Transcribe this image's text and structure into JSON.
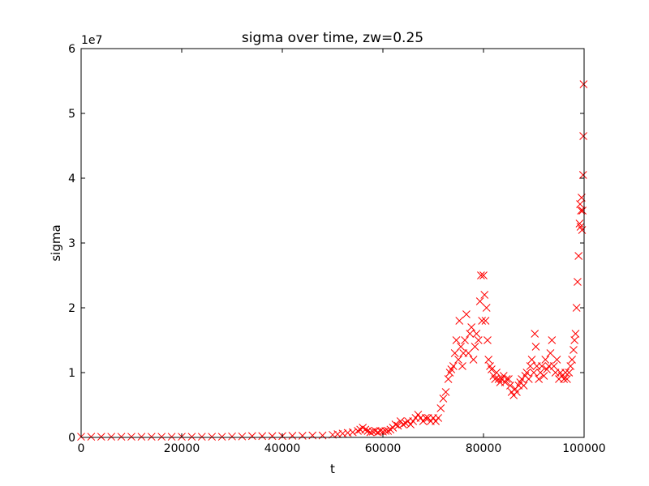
{
  "chart_data": {
    "type": "scatter",
    "title": "sigma over time, zw=0.25",
    "xlabel": "t",
    "ylabel": "sigma",
    "y_multiplier_label": "1e7",
    "xlim": [
      0,
      100000
    ],
    "ylim": [
      0,
      6
    ],
    "y_unit_scale": 10000000,
    "xticks": [
      0,
      20000,
      40000,
      60000,
      80000,
      100000
    ],
    "xtick_labels": [
      "0",
      "20000",
      "40000",
      "60000",
      "80000",
      "100000"
    ],
    "yticks": [
      0,
      1,
      2,
      3,
      4,
      5,
      6
    ],
    "ytick_labels": [
      "0",
      "1",
      "2",
      "3",
      "4",
      "5",
      "6"
    ],
    "grid": false,
    "marker": "x",
    "color": "#ff0000",
    "points": [
      [
        0,
        0.01
      ],
      [
        2000,
        0.01
      ],
      [
        4000,
        0.01
      ],
      [
        6000,
        0.01
      ],
      [
        8000,
        0.01
      ],
      [
        10000,
        0.01
      ],
      [
        12000,
        0.01
      ],
      [
        14000,
        0.01
      ],
      [
        16000,
        0.01
      ],
      [
        18000,
        0.01
      ],
      [
        20000,
        0.01
      ],
      [
        22000,
        0.01
      ],
      [
        24000,
        0.01
      ],
      [
        26000,
        0.01
      ],
      [
        28000,
        0.01
      ],
      [
        30000,
        0.015
      ],
      [
        32000,
        0.015
      ],
      [
        34000,
        0.02
      ],
      [
        36000,
        0.02
      ],
      [
        38000,
        0.02
      ],
      [
        40000,
        0.02
      ],
      [
        42000,
        0.025
      ],
      [
        44000,
        0.025
      ],
      [
        46000,
        0.03
      ],
      [
        48000,
        0.03
      ],
      [
        50000,
        0.04
      ],
      [
        51000,
        0.05
      ],
      [
        52000,
        0.06
      ],
      [
        53000,
        0.07
      ],
      [
        54000,
        0.08
      ],
      [
        55000,
        0.1
      ],
      [
        55500,
        0.12
      ],
      [
        56000,
        0.15
      ],
      [
        56500,
        0.12
      ],
      [
        57000,
        0.1
      ],
      [
        57500,
        0.08
      ],
      [
        58000,
        0.09
      ],
      [
        58500,
        0.1
      ],
      [
        59000,
        0.08
      ],
      [
        59500,
        0.1
      ],
      [
        60000,
        0.09
      ],
      [
        60500,
        0.1
      ],
      [
        61000,
        0.1
      ],
      [
        61500,
        0.12
      ],
      [
        62000,
        0.15
      ],
      [
        62500,
        0.2
      ],
      [
        63000,
        0.18
      ],
      [
        63500,
        0.25
      ],
      [
        64000,
        0.2
      ],
      [
        64500,
        0.22
      ],
      [
        65000,
        0.25
      ],
      [
        65500,
        0.2
      ],
      [
        66000,
        0.25
      ],
      [
        66500,
        0.3
      ],
      [
        67000,
        0.35
      ],
      [
        67500,
        0.3
      ],
      [
        68000,
        0.25
      ],
      [
        68500,
        0.3
      ],
      [
        69000,
        0.3
      ],
      [
        69500,
        0.25
      ],
      [
        70000,
        0.3
      ],
      [
        70500,
        0.25
      ],
      [
        71000,
        0.3
      ],
      [
        71500,
        0.45
      ],
      [
        72000,
        0.6
      ],
      [
        72500,
        0.7
      ],
      [
        73000,
        0.9
      ],
      [
        73300,
        1.0
      ],
      [
        73600,
        1.05
      ],
      [
        74000,
        1.1
      ],
      [
        74300,
        1.3
      ],
      [
        74600,
        1.5
      ],
      [
        75000,
        1.2
      ],
      [
        75200,
        1.8
      ],
      [
        75500,
        1.4
      ],
      [
        75800,
        1.1
      ],
      [
        76000,
        1.3
      ],
      [
        76300,
        1.5
      ],
      [
        76600,
        1.9
      ],
      [
        77000,
        1.3
      ],
      [
        77300,
        1.6
      ],
      [
        77600,
        1.7
      ],
      [
        78000,
        1.2
      ],
      [
        78300,
        1.4
      ],
      [
        78600,
        1.6
      ],
      [
        79000,
        1.5
      ],
      [
        79300,
        2.1
      ],
      [
        79500,
        2.5
      ],
      [
        79700,
        1.8
      ],
      [
        80000,
        2.5
      ],
      [
        80200,
        2.2
      ],
      [
        80400,
        1.8
      ],
      [
        80600,
        2.0
      ],
      [
        80800,
        1.5
      ],
      [
        81000,
        1.2
      ],
      [
        81300,
        1.1
      ],
      [
        81600,
        1.05
      ],
      [
        82000,
        0.95
      ],
      [
        82300,
        0.9
      ],
      [
        82600,
        1.0
      ],
      [
        83000,
        0.9
      ],
      [
        83300,
        0.85
      ],
      [
        83600,
        0.9
      ],
      [
        84000,
        0.95
      ],
      [
        84300,
        0.85
      ],
      [
        84600,
        0.9
      ],
      [
        85000,
        0.9
      ],
      [
        85300,
        0.8
      ],
      [
        85600,
        0.7
      ],
      [
        86000,
        0.65
      ],
      [
        86300,
        0.75
      ],
      [
        86600,
        0.7
      ],
      [
        87000,
        0.8
      ],
      [
        87300,
        0.85
      ],
      [
        87600,
        0.9
      ],
      [
        88000,
        0.8
      ],
      [
        88300,
        0.95
      ],
      [
        88600,
        1.0
      ],
      [
        89000,
        0.9
      ],
      [
        89300,
        1.1
      ],
      [
        89600,
        1.2
      ],
      [
        90000,
        1.0
      ],
      [
        90200,
        1.6
      ],
      [
        90400,
        1.4
      ],
      [
        90600,
        1.1
      ],
      [
        91000,
        0.9
      ],
      [
        91300,
        1.0
      ],
      [
        91600,
        1.1
      ],
      [
        92000,
        0.95
      ],
      [
        92300,
        1.2
      ],
      [
        92600,
        1.05
      ],
      [
        93000,
        1.1
      ],
      [
        93300,
        1.3
      ],
      [
        93600,
        1.5
      ],
      [
        94000,
        1.1
      ],
      [
        94300,
        1.0
      ],
      [
        94600,
        1.2
      ],
      [
        95000,
        0.9
      ],
      [
        95300,
        1.0
      ],
      [
        95600,
        0.95
      ],
      [
        96000,
        0.9
      ],
      [
        96300,
        1.0
      ],
      [
        96600,
        0.9
      ],
      [
        97000,
        1.0
      ],
      [
        97300,
        1.1
      ],
      [
        97600,
        1.2
      ],
      [
        97900,
        1.35
      ],
      [
        98100,
        1.5
      ],
      [
        98300,
        1.6
      ],
      [
        98500,
        2.0
      ],
      [
        98700,
        2.4
      ],
      [
        98900,
        2.8
      ],
      [
        99100,
        3.3
      ],
      [
        99200,
        3.6
      ],
      [
        99300,
        3.25
      ],
      [
        99400,
        3.5
      ],
      [
        99500,
        3.7
      ],
      [
        99600,
        3.2
      ],
      [
        99700,
        3.5
      ],
      [
        99800,
        4.05
      ],
      [
        99850,
        4.65
      ],
      [
        99900,
        5.45
      ]
    ]
  }
}
